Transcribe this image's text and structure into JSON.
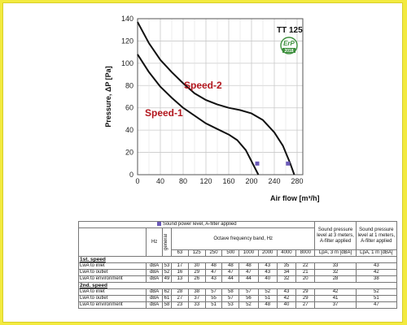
{
  "chart_data": {
    "type": "line",
    "title": "TT 125",
    "xlabel": "Air flow [m³/h]",
    "ylabel": "Pressure, ΔP [Pa]",
    "xlim": [
      0,
      290
    ],
    "ylim": [
      0,
      140
    ],
    "xticks": [
      "0",
      "40",
      "80",
      "120",
      "160",
      "200",
      "240",
      "280"
    ],
    "yticks": [
      "0",
      "20",
      "40",
      "60",
      "80",
      "100",
      "120",
      "140"
    ],
    "badge": {
      "text": "ErP",
      "year": "2018",
      "color": "#3b8e3b"
    },
    "series": [
      {
        "name": "Speed-1",
        "color": "#111111",
        "x": [
          0,
          20,
          40,
          60,
          80,
          100,
          120,
          140,
          160,
          175,
          190,
          200,
          212
        ],
        "y": [
          108,
          92,
          79,
          69,
          60,
          53,
          46,
          41,
          36,
          31,
          22,
          12,
          0
        ]
      },
      {
        "name": "Speed-2",
        "color": "#111111",
        "x": [
          0,
          20,
          40,
          60,
          80,
          100,
          120,
          140,
          160,
          180,
          200,
          220,
          240,
          255,
          268,
          275
        ],
        "y": [
          137,
          118,
          103,
          92,
          82,
          73,
          67,
          63,
          60,
          58,
          55,
          49,
          38,
          26,
          10,
          0
        ]
      }
    ],
    "markers": [
      {
        "x": 210,
        "y": 10,
        "color": "#6b59b8"
      },
      {
        "x": 264,
        "y": 10,
        "color": "#6b59b8"
      }
    ]
  },
  "table": {
    "legend": "Sound power level, A-filter applied",
    "header_lpa3": "Sound pressure level at 3 meters, A-filter applied",
    "header_lpa1": "Sound pressure level at 1 meters, A-filter applied",
    "octave_header": "Octave frequency band, Hz",
    "general": "general",
    "hz": "Hz",
    "bands": [
      "63",
      "125",
      "250",
      "500",
      "1000",
      "2000",
      "4000",
      "8000"
    ],
    "lpa3_unit": "LpA, 3 m [dBA]",
    "lpa1_unit": "LpA, 1 m [dBA]",
    "sections": [
      {
        "title": "1st. speed",
        "rows": [
          {
            "label": "LwA to inlet",
            "unit": "dBA",
            "general": "53",
            "bands": [
              "17",
              "30",
              "48",
              "48",
              "48",
              "43",
              "35",
              "22"
            ],
            "lpa3": "33",
            "lpa1": "43"
          },
          {
            "label": "LwA to outlet",
            "unit": "dBA",
            "general": "52",
            "bands": [
              "16",
              "29",
              "47",
              "47",
              "47",
              "43",
              "34",
              "21"
            ],
            "lpa3": "32",
            "lpa1": "42"
          },
          {
            "label": "LwA to environment",
            "unit": "dBA",
            "general": "49",
            "bands": [
              "13",
              "26",
              "43",
              "44",
              "44",
              "40",
              "32",
              "20"
            ],
            "lpa3": "28",
            "lpa1": "38"
          }
        ]
      },
      {
        "title": "2nd. speed",
        "rows": [
          {
            "label": "LwA to inlet",
            "unit": "dBA",
            "general": "62",
            "bands": [
              "28",
              "38",
              "57",
              "58",
              "57",
              "52",
              "43",
              "29"
            ],
            "lpa3": "42",
            "lpa1": "52"
          },
          {
            "label": "LwA to outlet",
            "unit": "dBA",
            "general": "61",
            "bands": [
              "27",
              "37",
              "55",
              "57",
              "56",
              "51",
              "42",
              "29"
            ],
            "lpa3": "41",
            "lpa1": "51"
          },
          {
            "label": "LwA to environment",
            "unit": "dBA",
            "general": "58",
            "bands": [
              "23",
              "33",
              "51",
              "53",
              "52",
              "48",
              "40",
              "27"
            ],
            "lpa3": "37",
            "lpa1": "47"
          }
        ]
      }
    ]
  }
}
